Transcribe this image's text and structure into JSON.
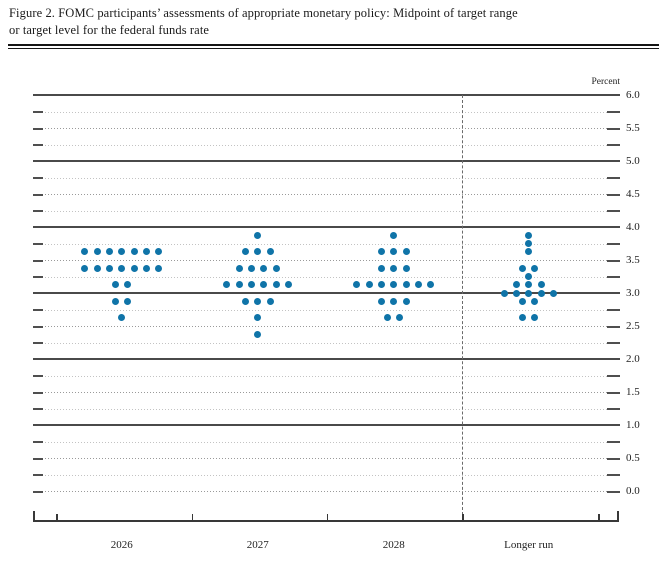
{
  "figure": {
    "title_line1": "Figure 2. FOMC participants’ assessments of appropriate monetary policy: Midpoint of target range",
    "title_line2": "or target level for the federal funds rate"
  },
  "chart_data": {
    "type": "scatter",
    "title": "FOMC participants’ assessments of appropriate monetary policy: Midpoint of target range or target level for the federal funds rate",
    "unit_label": "Percent",
    "ylabel": "Percent",
    "ylim": [
      0.0,
      6.0
    ],
    "y_label_step": 0.5,
    "y_minor_grid_step": 0.25,
    "grid": "on",
    "legend": "none",
    "y_tick_labels": [
      "6.0",
      "5.5",
      "5.0",
      "4.5",
      "4.0",
      "3.5",
      "3.0",
      "2.5",
      "2.0",
      "1.5",
      "1.0",
      "0.5",
      "0.0"
    ],
    "categories": [
      "2026",
      "2027",
      "2028",
      "Longer run"
    ],
    "series": [
      {
        "name": "2026",
        "dots": [
          {
            "value": 3.625,
            "count": 7
          },
          {
            "value": 3.375,
            "count": 7
          },
          {
            "value": 3.125,
            "count": 2
          },
          {
            "value": 2.875,
            "count": 2
          },
          {
            "value": 2.625,
            "count": 1
          }
        ]
      },
      {
        "name": "2027",
        "dots": [
          {
            "value": 3.875,
            "count": 1
          },
          {
            "value": 3.625,
            "count": 3
          },
          {
            "value": 3.375,
            "count": 4
          },
          {
            "value": 3.125,
            "count": 6
          },
          {
            "value": 2.875,
            "count": 3
          },
          {
            "value": 2.625,
            "count": 1
          },
          {
            "value": 2.375,
            "count": 1
          }
        ]
      },
      {
        "name": "2028",
        "dots": [
          {
            "value": 3.875,
            "count": 1
          },
          {
            "value": 3.625,
            "count": 3
          },
          {
            "value": 3.375,
            "count": 3
          },
          {
            "value": 3.125,
            "count": 7
          },
          {
            "value": 2.875,
            "count": 3
          },
          {
            "value": 2.625,
            "count": 2
          }
        ]
      },
      {
        "name": "Longer run",
        "dots": [
          {
            "value": 3.875,
            "count": 1
          },
          {
            "value": 3.75,
            "count": 1
          },
          {
            "value": 3.625,
            "count": 1
          },
          {
            "value": 3.375,
            "count": 2
          },
          {
            "value": 3.25,
            "count": 1
          },
          {
            "value": 3.125,
            "count": 3
          },
          {
            "value": 3.0,
            "count": 5
          },
          {
            "value": 2.875,
            "count": 2
          },
          {
            "value": 2.625,
            "count": 2
          }
        ]
      }
    ],
    "colors": {
      "dot": "#0f74a8",
      "major_gridline": "#4a4a4a",
      "dotted_gridline": "#9a9a9a",
      "minor_gridline": "#c3c3c3",
      "axis": "#383838"
    }
  }
}
